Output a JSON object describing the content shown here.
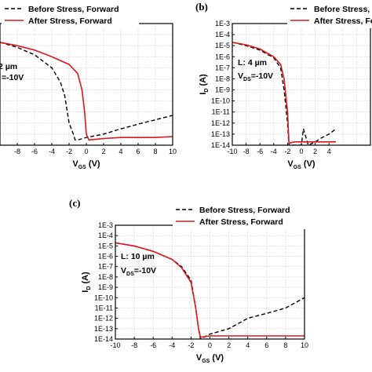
{
  "chart_data": [
    {
      "type": "line",
      "panel_label": "",
      "xlabel": "V",
      "xlabel_sub": "GS",
      "xlabel_unit": " (V)",
      "ylabel": "",
      "xlim": [
        -10,
        10
      ],
      "ylim": [
        1e-14,
        0.001
      ],
      "yscale": "log",
      "xticks": [
        "-8",
        "-6",
        "-4",
        "-2",
        "0",
        "2",
        "4",
        "6",
        "8",
        "10"
      ],
      "yticks": [],
      "grid": true,
      "legend": "top-right",
      "annotation": [
        "2 µm",
        "=-10V"
      ],
      "series": [
        {
          "name": "Before Stress, Forward",
          "color": "#000000",
          "style": "dash",
          "x": [
            -10,
            -8,
            -6,
            -4,
            -3,
            -2.5,
            -2,
            -1.5,
            -1.3,
            -1,
            0,
            2,
            4,
            6,
            8,
            10
          ],
          "y": [
            2e-05,
            7e-06,
            1.5e-06,
            1e-07,
            5e-09,
            3e-10,
            1e-12,
            1e-13,
            3e-14,
            3e-14,
            5e-14,
            1e-13,
            3e-13,
            8e-13,
            2e-12,
            5e-12
          ]
        },
        {
          "name": "After Stress, Forward",
          "color": "#e0161c",
          "style": "solid",
          "x": [
            -10,
            -8,
            -6,
            -4,
            -2,
            -1,
            -0.5,
            -0.2,
            0,
            0.3,
            2,
            4,
            6,
            8,
            10
          ],
          "y": [
            2e-05,
            1e-05,
            4e-06,
            1e-06,
            2e-07,
            3e-08,
            1e-09,
            1e-11,
            1e-13,
            3e-14,
            4e-14,
            5e-14,
            5e-14,
            5e-14,
            6e-14
          ]
        }
      ]
    },
    {
      "type": "line",
      "panel_label": "(b)",
      "xlabel": "V",
      "xlabel_sub": "GS",
      "xlabel_unit": " (V)",
      "ylabel": "I",
      "ylabel_sub": "D",
      "ylabel_unit": " (A)",
      "xlim": [
        -10,
        10
      ],
      "ylim": [
        1e-14,
        0.001
      ],
      "yscale": "log",
      "xticks": [
        "-10",
        "-8",
        "-6",
        "-4",
        "-2",
        "0",
        "2",
        "4"
      ],
      "yticks": [
        "1E-3",
        "1E-4",
        "1E-5",
        "1E-6",
        "1E-7",
        "1E-8",
        "1E-9",
        "1E-10",
        "1E-11",
        "1E-12",
        "1E-13",
        "1E-14"
      ],
      "grid": true,
      "legend": "top-right",
      "annotation": [
        "L: 4 µm",
        "V",
        "DS",
        "=-10V"
      ],
      "series": [
        {
          "name": "Before Stress, Forward",
          "color": "#000000",
          "style": "dash",
          "x": [
            -10,
            -8,
            -6,
            -4,
            -3,
            -2.5,
            -2,
            -1.8,
            -1,
            0,
            0.3,
            1,
            2,
            3,
            4,
            5
          ],
          "y": [
            2e-05,
            1e-05,
            4e-06,
            8e-07,
            1e-07,
            1e-09,
            1e-12,
            1e-14,
            1e-14,
            1e-14,
            3e-13,
            1e-14,
            2e-14,
            5e-14,
            1e-13,
            3e-13
          ]
        },
        {
          "name": "After Stress, Forward",
          "color": "#e0161c",
          "style": "solid",
          "x": [
            -10,
            -8,
            -6,
            -4,
            -3,
            -2.5,
            -2,
            -1.8,
            -1,
            0,
            1,
            2,
            3,
            4,
            5
          ],
          "y": [
            2e-05,
            1.2e-05,
            5e-06,
            1e-06,
            2e-07,
            1e-08,
            1e-11,
            1.5e-14,
            2e-14,
            2e-14,
            2e-14,
            2e-14,
            2e-14,
            2e-14,
            2e-14
          ]
        }
      ]
    },
    {
      "type": "line",
      "panel_label": "(c)",
      "xlabel": "V",
      "xlabel_sub": "GS",
      "xlabel_unit": " (V)",
      "ylabel": "I",
      "ylabel_sub": "D",
      "ylabel_unit": " (A)",
      "xlim": [
        -10,
        10
      ],
      "ylim": [
        1e-14,
        0.001
      ],
      "yscale": "log",
      "xticks": [
        "-10",
        "-8",
        "-6",
        "-4",
        "-2",
        "0",
        "2",
        "4",
        "6",
        "8",
        "10"
      ],
      "yticks": [
        "1E-3",
        "1E-4",
        "1E-5",
        "1E-6",
        "1E-7",
        "1E-8",
        "1E-9",
        "1E-10",
        "1E-11",
        "1E-12",
        "1E-13",
        "1E-14"
      ],
      "grid": true,
      "legend": "top-right",
      "annotation": [
        "L: 10 µm",
        "V",
        "DS",
        "=-10V"
      ],
      "series": [
        {
          "name": "Before Stress, Forward",
          "color": "#000000",
          "style": "dash",
          "x": [
            -10,
            -8,
            -6,
            -4,
            -3,
            -2,
            -1.5,
            -1.2,
            -1,
            0,
            2,
            4,
            6,
            8,
            10
          ],
          "y": [
            2e-05,
            1e-05,
            3e-06,
            5e-07,
            1e-07,
            5e-09,
            1e-11,
            1e-13,
            1e-14,
            3e-14,
            1e-13,
            1e-12,
            3e-12,
            1e-11,
            1e-10
          ]
        },
        {
          "name": "After Stress, Forward",
          "color": "#e0161c",
          "style": "solid",
          "x": [
            -10,
            -8,
            -6,
            -4,
            -3,
            -2,
            -1.5,
            -1.2,
            -1,
            0,
            2,
            4,
            6,
            8,
            10
          ],
          "y": [
            2e-05,
            1e-05,
            3e-06,
            5e-07,
            8e-08,
            3e-09,
            1e-11,
            1e-13,
            1.5e-14,
            2e-14,
            2e-14,
            2e-14,
            2e-14,
            2e-14,
            2e-14
          ]
        }
      ]
    }
  ]
}
